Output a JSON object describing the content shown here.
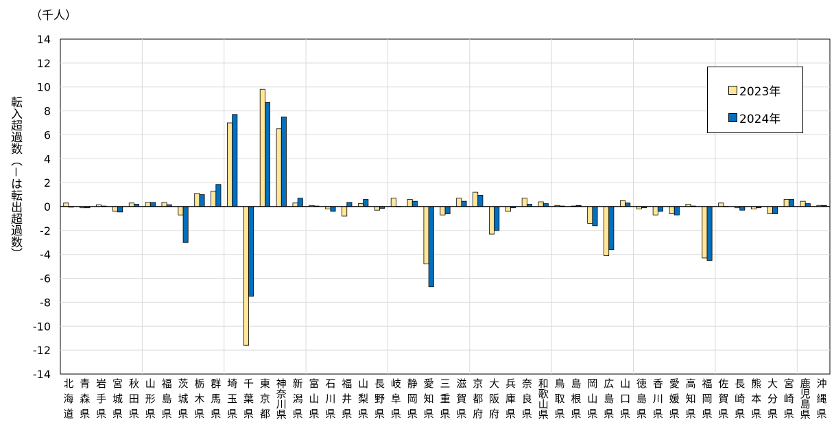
{
  "chart_data": {
    "type": "bar",
    "unit_label": "（千人）",
    "ylabel": "転入超過数（－は転出超過数）",
    "ylim": [
      -14,
      14
    ],
    "yticks": [
      14,
      12,
      10,
      8,
      6,
      4,
      2,
      0,
      -2,
      -4,
      -6,
      -8,
      -10,
      -12,
      -14
    ],
    "grid": true,
    "legend_position": "top-right",
    "categories": [
      "北海道",
      "青森県",
      "岩手県",
      "宮城県",
      "秋田県",
      "山形県",
      "福島県",
      "茨城県",
      "栃木県",
      "群馬県",
      "埼玉県",
      "千葉県",
      "東京都",
      "神奈川県",
      "新潟県",
      "富山県",
      "石川県",
      "福井県",
      "山梨県",
      "長野県",
      "岐阜県",
      "静岡県",
      "愛知県",
      "三重県",
      "滋賀県",
      "京都府",
      "大阪府",
      "兵庫県",
      "奈良県",
      "和歌山県",
      "鳥取県",
      "島根県",
      "岡山県",
      "広島県",
      "山口県",
      "徳島県",
      "香川県",
      "愛媛県",
      "高知県",
      "福岡県",
      "佐賀県",
      "長崎県",
      "熊本県",
      "大分県",
      "宮崎県",
      "鹿児島県",
      "沖縄県"
    ],
    "series": [
      {
        "name": "2023年",
        "color": "#FFE699",
        "values": [
          0.3,
          -0.1,
          0.15,
          -0.4,
          0.3,
          0.35,
          0.35,
          -0.7,
          1.1,
          1.3,
          7.0,
          -11.6,
          9.8,
          6.5,
          0.3,
          0.1,
          -0.2,
          -0.8,
          0.25,
          -0.3,
          0.7,
          0.6,
          -4.8,
          -0.7,
          0.7,
          1.2,
          -2.3,
          -0.4,
          0.7,
          0.4,
          0.1,
          0.05,
          -1.4,
          -4.1,
          0.5,
          -0.2,
          -0.7,
          -0.6,
          0.2,
          -4.3,
          0.3,
          -0.1,
          -0.2,
          -0.6,
          0.6,
          0.45,
          0.1
        ]
      },
      {
        "name": "2024年",
        "color": "#0070C0",
        "values": [
          -0.05,
          -0.1,
          0.05,
          -0.45,
          0.2,
          0.35,
          0.15,
          -3.0,
          1.0,
          1.85,
          7.7,
          -7.5,
          8.7,
          7.5,
          0.7,
          0.05,
          -0.4,
          0.35,
          0.6,
          -0.15,
          0.0,
          0.45,
          -6.7,
          -0.6,
          0.45,
          0.95,
          -2.0,
          -0.1,
          0.2,
          0.25,
          0.05,
          0.1,
          -1.6,
          -3.6,
          0.3,
          -0.1,
          -0.4,
          -0.7,
          0.05,
          -4.5,
          0.0,
          -0.3,
          -0.1,
          -0.6,
          0.6,
          0.25,
          0.1
        ]
      }
    ]
  }
}
